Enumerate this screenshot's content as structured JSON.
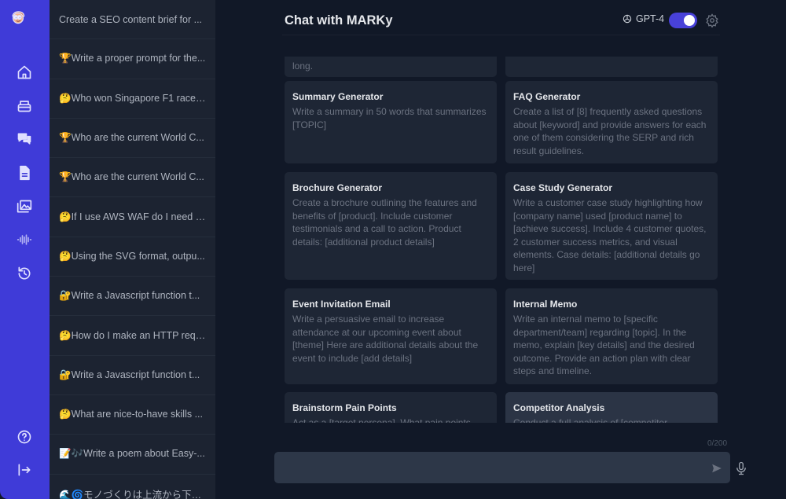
{
  "rail": {
    "icons": [
      "avatar-logo",
      "home-icon",
      "inbox-icon",
      "chat-icon",
      "document-icon",
      "images-icon",
      "audio-wave-icon",
      "history-icon",
      "help-icon",
      "logout-icon"
    ],
    "accent": "#3f3bd8"
  },
  "history": [
    "Create a SEO content brief for ...",
    "🏆Write a proper prompt for the...",
    "🤔Who won Singapore F1 race ...",
    "🏆Who are the current World C...",
    "🏆Who are the current World C...",
    "🤔If I use AWS WAF do I need s...",
    "🤔Using the SVG format, outpu...",
    "🔐Write a Javascript function t...",
    "🤔How do I make an HTTP requ...",
    "🔐Write a Javascript function t...",
    "🤔What are nice-to-have skills ...",
    "📝🎶Write a poem about Easy-...",
    "🌊🌀モノづくりは上流から下流..."
  ],
  "header": {
    "title": "Chat with MARKy",
    "model": "GPT-4",
    "model_toggle_on": true
  },
  "cards": [
    {
      "title": "",
      "body": "long."
    },
    {
      "title": "",
      "body": ""
    },
    {
      "title": "Summary Generator",
      "body": "Write a summary in 50 words that summarizes [TOPIC]"
    },
    {
      "title": "FAQ Generator",
      "body": "Create a list of [8] frequently asked questions about [keyword] and provide answers for each one of them considering the SERP and rich result guidelines."
    },
    {
      "title": "Brochure Generator",
      "body": "Create a brochure outlining the features and benefits of [product]. Include customer testimonials and a call to action. Product details: [additional product details]"
    },
    {
      "title": "Case Study Generator",
      "body": "Write a customer case study highlighting how [company name] used [product name] to [achieve success]. Include 4 customer quotes, 2 customer success metrics, and visual elements. Case details: [additional details go here]"
    },
    {
      "title": "Event Invitation Email",
      "body": "Write a persuasive email to increase attendance at our upcoming event about [theme] Here are additional details about the event to include [add details]"
    },
    {
      "title": "Internal Memo",
      "body": "Write an internal memo to [specific department/team] regarding [topic]. In the memo, explain [key details] and the desired outcome. Provide an action plan with clear steps and timeline."
    },
    {
      "title": "Brainstorm Pain Points",
      "body": "Act as a [target persona]. What pain points"
    },
    {
      "title": "Competitor Analysis",
      "body": "Conduct a full analysis of [competitor"
    }
  ],
  "composer": {
    "counter": "0/200",
    "value": "",
    "placeholder": ""
  }
}
